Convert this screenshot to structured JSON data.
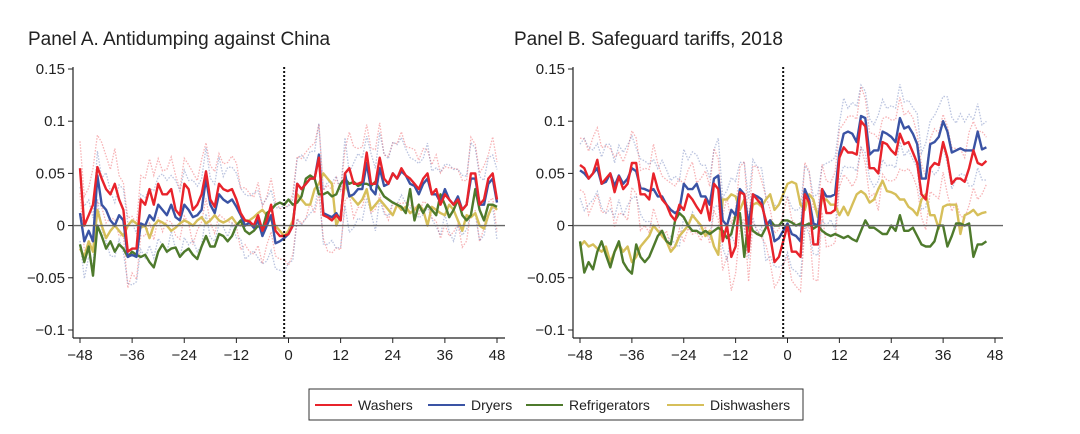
{
  "chart_data": [
    {
      "type": "line",
      "title": "Panel A. Antidumping against China",
      "xlabel": "",
      "ylabel": "",
      "xlim": [
        -48,
        48
      ],
      "ylim": [
        -0.1,
        0.15
      ],
      "xticks": [
        "−48",
        "−36",
        "−24",
        "−12",
        "0",
        "12",
        "24",
        "36",
        "48"
      ],
      "yticks": [
        "0.15",
        "0.1",
        "0.05",
        "0",
        "−0.05",
        "−0.1"
      ],
      "event_line_x": -1,
      "x_start": -48,
      "series": [
        {
          "name": "Washers",
          "values": [
            0.055,
            0.0,
            0.01,
            0.02,
            0.056,
            0.045,
            0.035,
            0.03,
            0.04,
            0.025,
            0.015,
            -0.025,
            -0.022,
            -0.022,
            0.025,
            0.02,
            0.035,
            0.02,
            0.04,
            0.03,
            0.03,
            0.035,
            0.015,
            0.01,
            0.04,
            0.035,
            0.015,
            0.02,
            0.03,
            0.052,
            0.025,
            0.018,
            0.04,
            0.035,
            0.033,
            0.035,
            0.025,
            0.012,
            0.005,
            0.004,
            0.0,
            0.01,
            -0.005,
            0.005,
            0.02,
            -0.005,
            -0.01,
            -0.01,
            -0.008,
            0.0,
            0.04,
            0.035,
            0.04,
            0.045,
            0.045,
            0.065,
            0.01,
            0.008,
            0.005,
            0.01,
            0.005,
            0.05,
            0.055,
            0.04,
            0.04,
            0.042,
            0.07,
            0.04,
            0.04,
            0.065,
            0.045,
            0.04,
            0.05,
            0.045,
            0.055,
            0.048,
            0.045,
            0.04,
            0.035,
            0.045,
            0.05,
            0.03,
            0.035,
            0.02,
            0.03,
            0.025,
            0.02,
            0.025,
            0.015,
            0.02,
            0.05,
            0.05,
            0.02,
            0.025,
            0.045,
            0.05,
            0.025
          ]
        },
        {
          "name": "Dryers",
          "values": [
            0.012,
            -0.015,
            -0.005,
            -0.015,
            0.048,
            0.02,
            0.015,
            0.005,
            0.0,
            0.01,
            0.005,
            -0.03,
            -0.028,
            -0.03,
            0.002,
            0.0,
            0.01,
            0.005,
            0.02,
            0.015,
            0.01,
            0.02,
            0.008,
            0.005,
            0.02,
            0.015,
            0.008,
            0.01,
            0.015,
            0.045,
            0.02,
            0.012,
            0.03,
            0.025,
            0.022,
            0.025,
            0.018,
            0.01,
            0.0,
            0.003,
            -0.002,
            0.005,
            -0.01,
            0.0,
            0.01,
            -0.017,
            -0.015,
            -0.012,
            -0.008,
            0.0,
            0.04,
            0.035,
            0.04,
            0.045,
            0.045,
            0.068,
            0.012,
            0.01,
            0.008,
            0.012,
            0.005,
            0.05,
            0.028,
            0.03,
            0.035,
            0.035,
            0.06,
            0.035,
            0.03,
            0.055,
            0.038,
            0.04,
            0.05,
            0.045,
            0.052,
            0.048,
            0.04,
            0.038,
            0.03,
            0.04,
            0.045,
            0.03,
            0.03,
            0.022,
            0.035,
            0.025,
            0.02,
            0.028,
            0.015,
            0.02,
            0.045,
            0.045,
            0.02,
            0.02,
            0.04,
            0.045,
            0.022
          ]
        },
        {
          "name": "Refrigerators",
          "values": [
            -0.018,
            -0.035,
            -0.02,
            -0.048,
            0.0,
            -0.01,
            -0.022,
            -0.015,
            -0.025,
            -0.018,
            -0.022,
            -0.03,
            -0.025,
            -0.028,
            -0.03,
            -0.028,
            -0.035,
            -0.04,
            -0.025,
            -0.018,
            -0.025,
            -0.022,
            -0.021,
            -0.03,
            -0.025,
            -0.022,
            -0.028,
            -0.032,
            -0.02,
            -0.01,
            -0.02,
            -0.02,
            -0.008,
            -0.01,
            -0.015,
            -0.01,
            0.0,
            0.005,
            -0.005,
            -0.008,
            -0.005,
            0.0,
            -0.004,
            0.012,
            0.015,
            0.02,
            0.022,
            0.02,
            0.025,
            0.02,
            0.022,
            0.028,
            0.045,
            0.048,
            0.045,
            0.03,
            0.03,
            0.032,
            0.028,
            0.03,
            0.04,
            0.045,
            0.04,
            0.042,
            0.038,
            0.04,
            0.04,
            0.038,
            0.042,
            0.035,
            0.028,
            0.025,
            0.022,
            0.02,
            0.018,
            0.012,
            0.035,
            0.005,
            0.02,
            0.012,
            0.02,
            0.015,
            0.01,
            0.03,
            0.02,
            0.008,
            0.015,
            0.025,
            0.01,
            0.005,
            0.01,
            0.035,
            0.015,
            0.005,
            0.02,
            0.02,
            0.018
          ]
        },
        {
          "name": "Dishwashers",
          "values": [
            -0.022,
            -0.03,
            -0.015,
            -0.025,
            0.015,
            0.0,
            -0.012,
            -0.005,
            0.0,
            -0.005,
            -0.01,
            0.0,
            0.005,
            0.002,
            -0.002,
            0.0,
            -0.012,
            0.0,
            0.005,
            0.003,
            0.0,
            -0.005,
            -0.002,
            0.002,
            0.005,
            0.003,
            0.0,
            0.005,
            0.008,
            0.002,
            0.005,
            0.01,
            0.005,
            0.003,
            0.005,
            0.008,
            0.002,
            0.0,
            0.005,
            0.005,
            0.008,
            0.012,
            0.015,
            0.01,
            0.005,
            0.0,
            -0.005,
            -0.01,
            -0.005,
            0.005,
            0.03,
            0.025,
            0.02,
            0.02,
            0.035,
            0.04,
            0.05,
            0.045,
            0.04,
            0.0,
            0.01,
            0.04,
            0.03,
            0.025,
            0.02,
            0.025,
            0.035,
            0.015,
            0.02,
            0.025,
            0.02,
            0.015,
            0.01,
            0.02,
            0.015,
            0.018,
            0.012,
            0.015,
            0.02,
            0.015,
            0.0,
            0.018,
            0.015,
            0.012,
            0.01,
            0.02,
            0.015,
            0.005,
            -0.005,
            0.01,
            0.008,
            0.012,
            0.0,
            -0.003,
            0.01,
            0.02,
            0.015
          ]
        }
      ]
    },
    {
      "type": "line",
      "title": "Panel B. Safeguard tariffs, 2018",
      "xlabel": "",
      "ylabel": "",
      "xlim": [
        -48,
        48
      ],
      "ylim": [
        -0.1,
        0.15
      ],
      "xticks": [
        "−48",
        "−36",
        "−24",
        "−12",
        "0",
        "12",
        "24",
        "36",
        "48"
      ],
      "yticks": [
        "0.15",
        "0.1",
        "0.05",
        "0",
        "−0.05",
        "−0.1"
      ],
      "event_line_x": -1,
      "x_start": -48,
      "series": [
        {
          "name": "Washers",
          "values": [
            0.058,
            0.055,
            0.045,
            0.05,
            0.063,
            0.04,
            0.045,
            0.05,
            0.032,
            0.047,
            0.035,
            0.04,
            0.06,
            0.06,
            0.03,
            0.03,
            0.025,
            0.05,
            0.035,
            0.025,
            0.02,
            0.01,
            0.005,
            0.02,
            0.015,
            0.03,
            0.025,
            0.018,
            0.012,
            0.025,
            0.005,
            0.04,
            0.035,
            -0.015,
            0.0,
            -0.03,
            -0.02,
            0.032,
            0.03,
            -0.025,
            0.03,
            0.025,
            0.02,
            0.005,
            -0.01,
            -0.035,
            -0.03,
            -0.015,
            0.0,
            -0.025,
            -0.025,
            -0.03,
            0.03,
            0.022,
            -0.018,
            -0.018,
            0.035,
            0.012,
            0.012,
            0.015,
            0.065,
            0.075,
            0.07,
            0.07,
            0.068,
            0.1,
            0.095,
            0.055,
            0.055,
            0.05,
            0.08,
            0.078,
            0.072,
            0.068,
            0.088,
            0.078,
            0.08,
            0.07,
            0.06,
            0.03,
            0.025,
            0.055,
            0.06,
            0.058,
            0.08,
            0.065,
            0.04,
            0.045,
            0.045,
            0.042,
            0.055,
            0.072,
            0.06,
            0.058,
            0.062
          ]
        },
        {
          "name": "Dryers",
          "values": [
            0.053,
            0.05,
            0.045,
            0.05,
            0.055,
            0.04,
            0.042,
            0.05,
            0.038,
            0.048,
            0.04,
            0.045,
            0.055,
            0.052,
            0.036,
            0.035,
            0.033,
            0.035,
            0.028,
            0.028,
            0.02,
            0.015,
            0.012,
            0.015,
            0.04,
            0.035,
            0.035,
            0.04,
            0.028,
            0.028,
            0.02,
            0.045,
            0.048,
            0.005,
            0.0,
            0.015,
            0.01,
            0.035,
            0.03,
            0.0,
            0.03,
            0.028,
            0.025,
            0.0,
            0.005,
            -0.015,
            -0.012,
            -0.005,
            0.002,
            -0.008,
            -0.01,
            -0.015,
            0.035,
            0.025,
            0.002,
            0.0,
            0.035,
            0.028,
            0.028,
            0.03,
            0.07,
            0.088,
            0.09,
            0.088,
            0.08,
            0.105,
            0.103,
            0.068,
            0.072,
            0.072,
            0.09,
            0.088,
            0.085,
            0.08,
            0.103,
            0.093,
            0.095,
            0.088,
            0.078,
            0.045,
            0.045,
            0.078,
            0.08,
            0.085,
            0.1,
            0.09,
            0.07,
            0.072,
            0.074,
            0.072,
            0.072,
            0.072,
            0.09,
            0.073,
            0.075
          ]
        },
        {
          "name": "Refrigerators",
          "values": [
            -0.015,
            -0.045,
            -0.035,
            -0.042,
            -0.025,
            -0.015,
            -0.028,
            -0.04,
            -0.025,
            -0.015,
            -0.035,
            -0.042,
            -0.046,
            -0.018,
            -0.03,
            -0.035,
            -0.03,
            -0.02,
            -0.01,
            -0.005,
            -0.015,
            -0.018,
            0.005,
            0.012,
            0.008,
            0.0,
            -0.005,
            -0.005,
            -0.008,
            -0.005,
            -0.008,
            -0.005,
            -0.002,
            -0.005,
            -0.012,
            -0.008,
            0.01,
            0.012,
            -0.03,
            0.005,
            -0.005,
            -0.008,
            -0.01,
            -0.002,
            0.005,
            0.0,
            0.0,
            0.005,
            0.005,
            0.003,
            0.0,
            0.002,
            0.0,
            0.002,
            -0.003,
            0.0,
            -0.005,
            -0.008,
            -0.01,
            -0.008,
            -0.01,
            -0.012,
            -0.01,
            -0.013,
            -0.015,
            -0.005,
            0.005,
            -0.002,
            -0.002,
            -0.005,
            -0.008,
            -0.008,
            0.0,
            -0.005,
            0.01,
            -0.005,
            -0.005,
            -0.002,
            -0.01,
            -0.018,
            -0.02,
            -0.02,
            -0.015,
            0.0,
            0.0,
            -0.02,
            -0.01,
            0.002,
            0.002,
            0.0,
            0.002,
            -0.03,
            -0.018,
            -0.018,
            -0.015
          ]
        },
        {
          "name": "Dishwashers",
          "values": [
            -0.02,
            -0.015,
            -0.02,
            -0.018,
            -0.022,
            -0.025,
            -0.02,
            -0.035,
            -0.025,
            -0.018,
            -0.025,
            -0.02,
            -0.035,
            -0.03,
            -0.02,
            -0.015,
            -0.01,
            0.0,
            -0.005,
            -0.01,
            -0.015,
            -0.025,
            -0.02,
            -0.01,
            -0.005,
            0.0,
            0.01,
            0.005,
            0.0,
            -0.01,
            -0.005,
            -0.02,
            -0.028,
            0.025,
            0.025,
            0.03,
            0.028,
            0.015,
            0.025,
            -0.005,
            0.02,
            0.022,
            0.018,
            0.025,
            0.03,
            0.015,
            0.02,
            0.03,
            0.04,
            0.042,
            0.04,
            0.02,
            0.015,
            0.03,
            0.025,
            0.008,
            0.025,
            0.025,
            0.02,
            0.02,
            0.01,
            0.018,
            0.01,
            0.02,
            0.03,
            0.033,
            0.03,
            0.022,
            0.025,
            0.035,
            0.043,
            0.033,
            0.032,
            0.03,
            0.025,
            0.025,
            0.018,
            0.015,
            0.01,
            0.025,
            0.03,
            0.01,
            0.01,
            -0.003,
            0.018,
            0.02,
            0.02,
            0.02,
            -0.008,
            0.01,
            0.012,
            0.015,
            0.01,
            0.012,
            0.013
          ]
        }
      ]
    }
  ],
  "legend": {
    "placement": "bottom-center",
    "items": [
      {
        "name": "Washers",
        "color": "#e8232b"
      },
      {
        "name": "Dryers",
        "color": "#3a53a4"
      },
      {
        "name": "Refrigerators",
        "color": "#4e7a2c"
      },
      {
        "name": "Dishwashers",
        "color": "#d6bf5a"
      }
    ]
  },
  "colors": {
    "Washers": "#e8232b",
    "Dryers": "#3a53a4",
    "Refrigerators": "#4e7a2c",
    "Dishwashers": "#d6bf5a",
    "axis": "#222222",
    "zero_line": "#666666"
  }
}
